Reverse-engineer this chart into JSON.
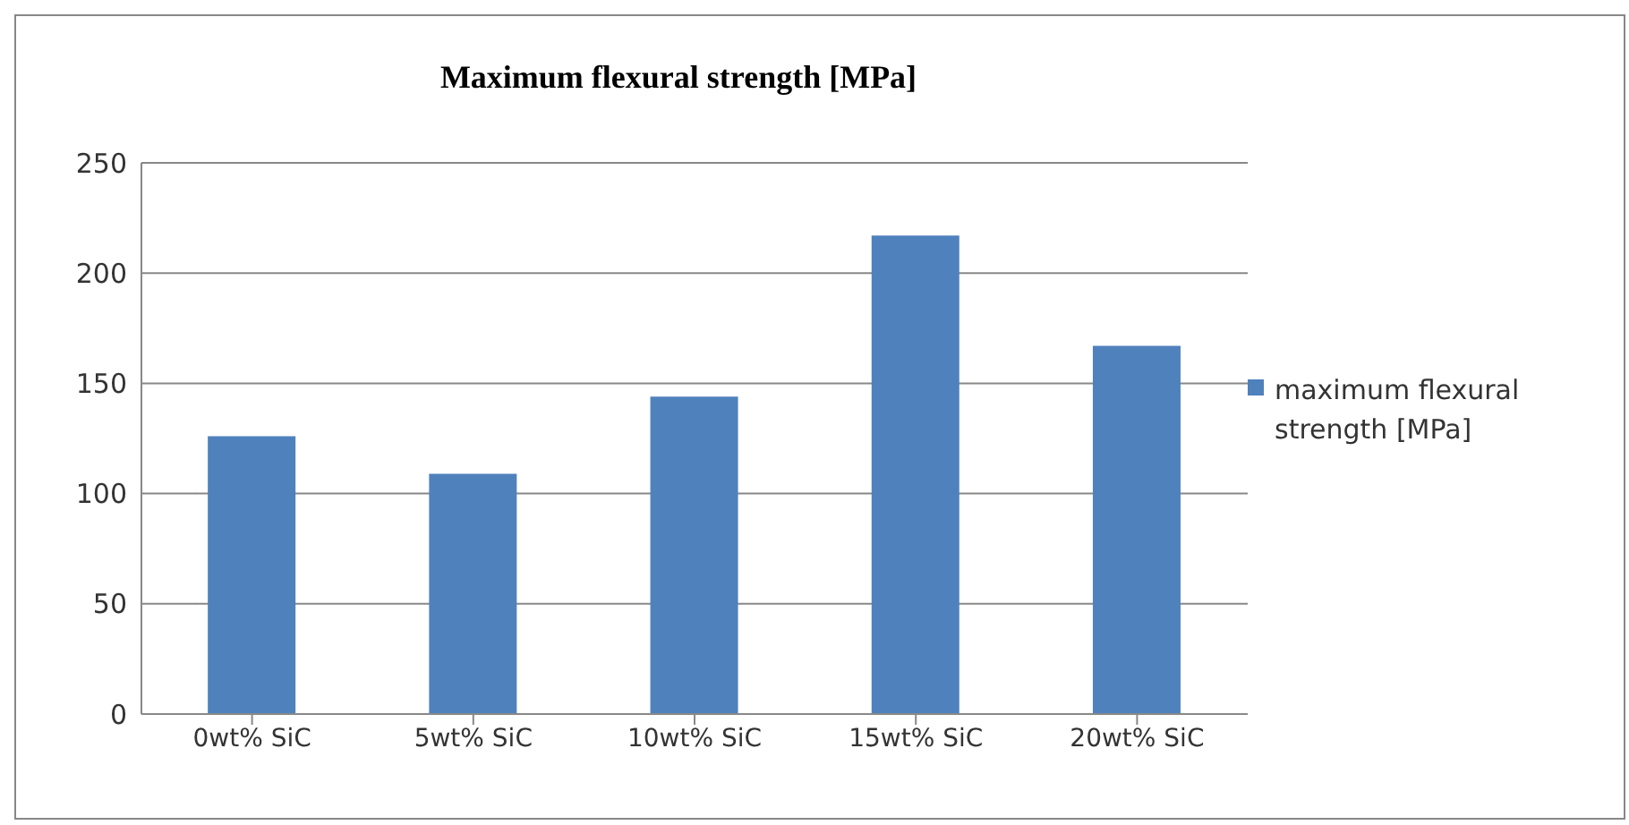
{
  "chart_data": {
    "type": "bar",
    "title": "Maximum flexural  strength [MPa]",
    "categories": [
      "0wt% SiC",
      "5wt% SiC",
      "10wt% SiC",
      "15wt% SiC",
      "20wt% SiC"
    ],
    "series": [
      {
        "name": "maximum flexural strength [MPa]",
        "color": "#4f81bd",
        "values": [
          126,
          109,
          144,
          217,
          167
        ]
      }
    ],
    "ylim": [
      0,
      250
    ],
    "yticks": [
      0,
      50,
      100,
      150,
      200,
      250
    ],
    "grid": "y",
    "legend": "right"
  }
}
